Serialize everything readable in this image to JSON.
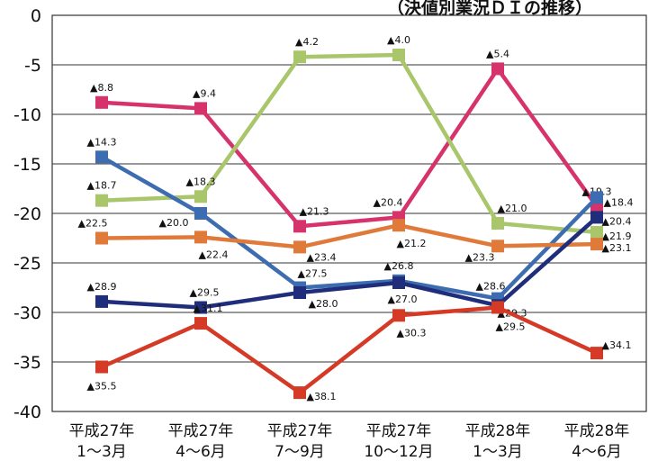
{
  "header": {
    "title_fragment": "（決値別業況ＤＩの推移）"
  },
  "chart_data": {
    "type": "line",
    "title": "（決値別業況ＤＩの推移）",
    "xlabel": "",
    "ylabel": "",
    "ylim": [
      -40,
      0
    ],
    "yticks": [
      0,
      -5,
      -10,
      -15,
      -20,
      -25,
      -30,
      -35,
      -40
    ],
    "categories": [
      [
        "平成27年",
        "1〜3月"
      ],
      [
        "平成27年",
        "4〜6月"
      ],
      [
        "平成27年",
        "7〜9月"
      ],
      [
        "平成27年",
        "10〜12月"
      ],
      [
        "平成28年",
        "1〜3月"
      ],
      [
        "平成28年",
        "4〜6月"
      ]
    ],
    "grid": true,
    "legend": "none",
    "series": [
      {
        "color": "#d6336c",
        "values": [
          -8.8,
          -9.4,
          -21.3,
          -20.4,
          -5.4,
          -19.3
        ],
        "labels": [
          "▲8.8",
          "▲9.4",
          "▲21.3",
          "▲20.4",
          "▲5.4",
          "▲19.3"
        ]
      },
      {
        "color": "#a9c66b",
        "values": [
          -18.7,
          -18.3,
          -4.2,
          -4.0,
          -21.0,
          -21.9
        ],
        "labels": [
          "▲18.7",
          "▲18.3",
          "▲4.2",
          "▲4.0",
          "▲21.0",
          "▲21.9"
        ]
      },
      {
        "color": "#3d6cb0",
        "values": [
          -14.3,
          -20.0,
          -27.5,
          -26.8,
          -28.6,
          -18.4
        ],
        "labels": [
          "▲14.3",
          "▲20.0",
          "▲27.5",
          "▲26.8",
          "▲28.6",
          "▲18.4"
        ]
      },
      {
        "color": "#e07a3a",
        "values": [
          -22.5,
          -22.4,
          -23.4,
          -21.2,
          -23.3,
          -23.1
        ],
        "labels": [
          "▲22.5",
          "▲22.4",
          "▲23.4",
          "▲21.2",
          "▲23.3",
          "▲23.1"
        ]
      },
      {
        "color": "#1f2d7a",
        "values": [
          -28.9,
          -29.5,
          -28.0,
          -27.0,
          -29.3,
          -20.4
        ],
        "labels": [
          "▲28.9",
          "▲29.5",
          "▲28.0",
          "▲27.0",
          "▲29.3",
          "▲20.4"
        ]
      },
      {
        "color": "#d53a26",
        "values": [
          -35.5,
          -31.1,
          -38.1,
          -30.3,
          -29.5,
          -34.1
        ],
        "labels": [
          "▲35.5",
          "▲31.1",
          "▲38.1",
          "▲30.3",
          "▲29.5",
          "▲34.1"
        ]
      }
    ]
  }
}
